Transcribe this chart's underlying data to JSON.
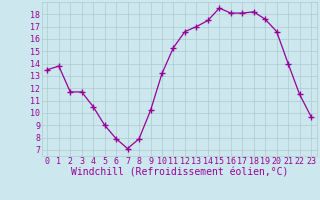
{
  "x": [
    0,
    1,
    2,
    3,
    4,
    5,
    6,
    7,
    8,
    9,
    10,
    11,
    12,
    13,
    14,
    15,
    16,
    17,
    18,
    19,
    20,
    21,
    22,
    23
  ],
  "y": [
    13.5,
    13.8,
    11.7,
    11.7,
    10.5,
    9.0,
    7.9,
    7.1,
    7.9,
    10.2,
    13.2,
    15.3,
    16.6,
    17.0,
    17.5,
    18.5,
    18.1,
    18.1,
    18.2,
    17.6,
    16.6,
    14.0,
    11.5,
    9.7
  ],
  "line_color": "#990099",
  "marker": "+",
  "marker_size": 4,
  "bg_color": "#cce8ee",
  "grid_color": "#aacccc",
  "xlabel": "Windchill (Refroidissement éolien,°C)",
  "xlim": [
    -0.5,
    23.5
  ],
  "ylim": [
    6.5,
    19.0
  ],
  "yticks": [
    7,
    8,
    9,
    10,
    11,
    12,
    13,
    14,
    15,
    16,
    17,
    18
  ],
  "xticks": [
    0,
    1,
    2,
    3,
    4,
    5,
    6,
    7,
    8,
    9,
    10,
    11,
    12,
    13,
    14,
    15,
    16,
    17,
    18,
    19,
    20,
    21,
    22,
    23
  ],
  "tick_color": "#990099",
  "label_color": "#990099",
  "label_fontsize": 7,
  "tick_fontsize": 6,
  "linewidth": 0.9
}
